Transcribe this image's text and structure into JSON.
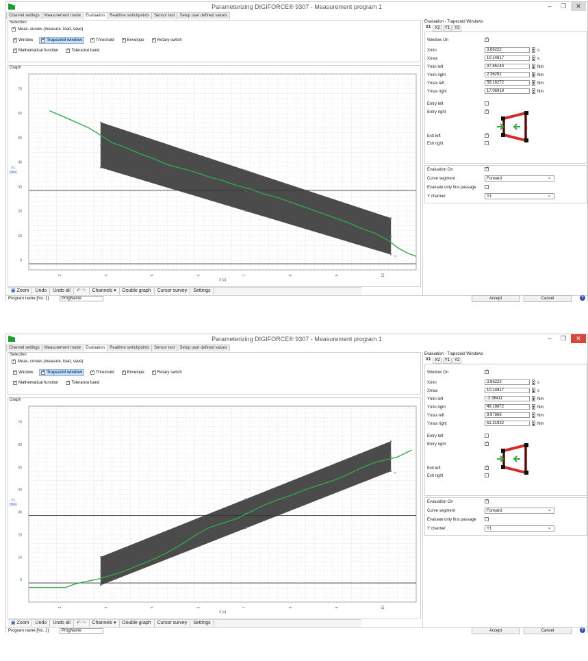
{
  "app": {
    "title": "Parameterizing DIGIFORCE® 9307  -  Measurement program 1",
    "controls": {
      "minimize": "–",
      "maximize": "❐",
      "close": "✕"
    }
  },
  "tabs": [
    "Channel settings",
    "Measurement mode",
    "Evaluation",
    "Realtime switchpoints",
    "Sensor test",
    "Setup user defined values"
  ],
  "active_tab": "Evaluation",
  "selection": {
    "title": "Selection",
    "meas_curves": "Meas. curves (measure, load, save)",
    "options": [
      "Window",
      "Trapezoid window",
      "Threshold",
      "Envelope",
      "Rotary switch"
    ],
    "active_option": "Trapezoid window",
    "options2": [
      "Mathematical function",
      "Tolerance band"
    ]
  },
  "graph": {
    "title": "Graph",
    "ylabel_line1": "Y1",
    "ylabel_line2": "[Nm]",
    "xlabel": "X [s]",
    "y_ticks": [
      "0",
      "10",
      "20",
      "30",
      "40",
      "50",
      "60",
      "70"
    ],
    "x_ticks": [
      "3",
      "4",
      "5",
      "6",
      "7",
      "8",
      "9",
      "10"
    ],
    "series_label": "Y1"
  },
  "toolbar": {
    "zoom": "Zoom",
    "undo": "Undo",
    "undo_all": "Undo all",
    "channels": "Channels ▾",
    "double_graph": "Double graph",
    "cursor_survey": "Cursor survey",
    "settings": "Settings"
  },
  "status": {
    "program_name_label": "Program name [No. 1]:",
    "program_name_value": "ProgName",
    "accept": "Accept",
    "cancel": "Cancel",
    "help": "?"
  },
  "eval_panel": {
    "title": "Evaluation - Trapezoid Windows",
    "subtabs": [
      "X1",
      "X2",
      "Y1",
      "Y2"
    ],
    "window_on": "Window On",
    "labels": {
      "xmin": "Xmin",
      "xmax": "Xmax",
      "ymin_left": "Ymin left",
      "ymin_right": "Ymin right",
      "ymax_left": "Ymax left",
      "ymax_right": "Ymax right",
      "entry_left": "Entry left",
      "entry_right": "Entry right",
      "exit_left": "Exit left",
      "exit_right": "Exit right",
      "evaluation_on": "Evaluation On",
      "curve_segment": "Curve segment",
      "evaluate_first": "Evaluate only first passage",
      "y_channel": "Y channel"
    },
    "units": {
      "s": "s",
      "nm": "Nm"
    },
    "curve_segment_value": "Forward",
    "y_channel_value": "Y1"
  },
  "screens": [
    {
      "id": "win1",
      "close_red": false,
      "values": {
        "xmin": "3.86222",
        "xmax": "10.14817",
        "ymin_left": "37.85144",
        "ymin_right": "2.36291",
        "ymax_left": "56.16272",
        "ymax_right": "17.06919"
      },
      "chart_data": {
        "type": "line",
        "xlabel": "X [s]",
        "ylabel": "Y1 [Nm]",
        "xlim": [
          2.3,
          10.7
        ],
        "ylim": [
          -4,
          76
        ],
        "threshold_lines": [
          28.5,
          -1.5
        ],
        "trapezoid": {
          "xmin": 3.86222,
          "xmax": 10.14817,
          "ymin_left": 37.85144,
          "ymin_right": 2.36291,
          "ymax_left": 56.16272,
          "ymax_right": 17.06919
        },
        "series": [
          {
            "name": "Y1",
            "x": [
              2.75,
              3.0,
              3.3,
              3.6,
              3.86,
              4.1,
              4.4,
              4.7,
              5.0,
              5.3,
              5.6,
              5.9,
              6.2,
              6.5,
              6.8,
              7.1,
              7.4,
              7.7,
              8.0,
              8.3,
              8.6,
              8.9,
              9.2,
              9.5,
              9.8,
              10.1,
              10.3,
              10.5,
              10.7
            ],
            "y": [
              61,
              59,
              56.5,
              54,
              51,
              48,
              46,
              43.5,
              41.5,
              39,
              37.5,
              36,
              34,
              32.5,
              30.5,
              29,
              27,
              25.5,
              23.5,
              21.5,
              19.5,
              17.5,
              15.5,
              13,
              11,
              8,
              5,
              3,
              1.5
            ]
          }
        ]
      }
    },
    {
      "id": "win2",
      "close_red": true,
      "values": {
        "xmin": "3.86222",
        "xmax": "10.14817",
        "ymin_left": "-2.38411",
        "ymin_right": "48.18872",
        "ymax_left": "9.97866",
        "ymax_right": "61.31932"
      },
      "chart_data": {
        "type": "line",
        "xlabel": "X [s]",
        "ylabel": "Y1 [Nm]",
        "xlim": [
          2.3,
          10.7
        ],
        "ylim": [
          -10,
          77
        ],
        "threshold_lines": [
          28.5,
          -1.5
        ],
        "trapezoid": {
          "xmin": 3.86222,
          "xmax": 10.14817,
          "ymin_left": -2.38411,
          "ymin_right": 48.18872,
          "ymax_left": 9.97866,
          "ymax_right": 61.31932
        },
        "series": [
          {
            "name": "Y1",
            "x": [
              2.3,
              2.6,
              2.9,
              3.1,
              3.3,
              3.5,
              3.7,
              3.86,
              4.1,
              4.4,
              4.7,
              5.0,
              5.3,
              5.6,
              5.9,
              6.2,
              6.5,
              6.8,
              7.1,
              7.4,
              7.7,
              8.0,
              8.3,
              8.6,
              8.9,
              9.2,
              9.5,
              9.8,
              10.1,
              10.3,
              10.5,
              10.6
            ],
            "y": [
              -3.5,
              -3.5,
              -3.5,
              -3.5,
              -2,
              -1,
              -0.2,
              0.5,
              2,
              4,
              6.5,
              9,
              12,
              15.5,
              19.5,
              23,
              25,
              27,
              30,
              33,
              35.5,
              37.5,
              40,
              42,
              44,
              46.5,
              49.5,
              52,
              53.5,
              54.5,
              56.5,
              57.5
            ]
          }
        ]
      }
    }
  ]
}
